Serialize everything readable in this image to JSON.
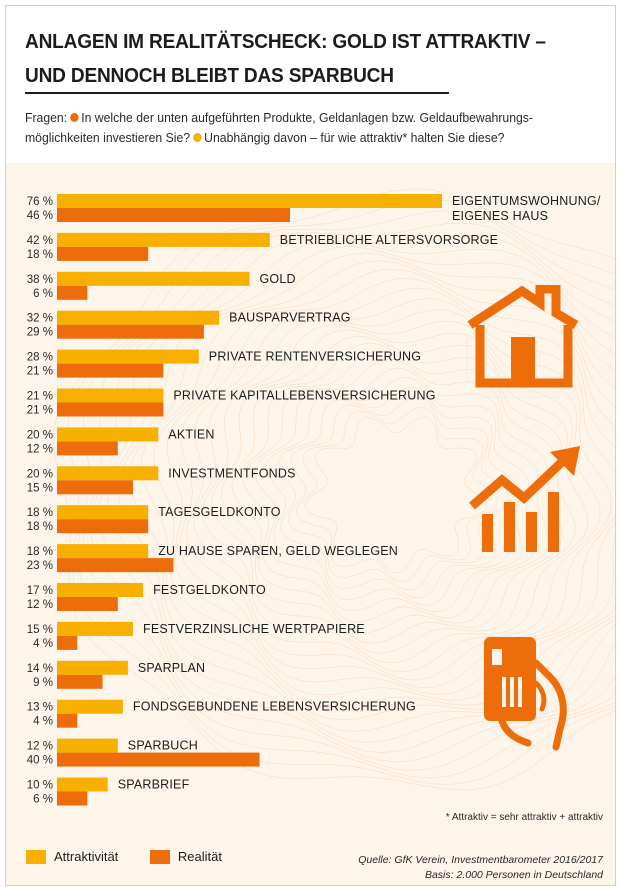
{
  "title": {
    "line1": "ANLAGEN IM REALITÄTSCHECK: GOLD IST ATTRAKTIV –",
    "line2": "UND DENNOCH BLEIBT DAS SPARBUCH"
  },
  "questions": {
    "prefix": "Fragen:",
    "q1_part1": "In welche der unten aufgeführten Produkte, Geldanlagen bzw. Geldaufbewahrungs-",
    "q1_part2": "möglichkeiten investieren Sie?",
    "q2": "Unabhängig davon – für wie attraktiv* halten Sie diese?"
  },
  "footnote": "* Attraktiv = sehr attraktiv + attraktiv",
  "legend": {
    "attraktivitaet": "Attraktivität",
    "realitaet": "Realität"
  },
  "source": {
    "line1": "Quelle: GfK Verein, Investmentbarometer 2016/2017",
    "line2": "Basis: 2.000 Personen in Deutschland"
  },
  "colors": {
    "attraktivitaet": "#f7b000",
    "realitaet": "#ee6d0b",
    "background": "#fdf4ea",
    "text": "#1c1c1c"
  },
  "icons": [
    "house-icon",
    "growth-chart-icon",
    "card-in-hand-icon"
  ],
  "chart_data": {
    "type": "bar",
    "orientation": "horizontal",
    "categories": [
      [
        "EIGENTUMSWOHNUNG/",
        "EIGENES HAUS"
      ],
      [
        "BETRIEBLICHE ALTERSVORSORGE"
      ],
      [
        "GOLD"
      ],
      [
        "BAUSPARVERTRAG"
      ],
      [
        "PRIVATE RENTENVERSICHERUNG"
      ],
      [
        "PRIVATE KAPITALLEBENSVERSICHERUNG"
      ],
      [
        "AKTIEN"
      ],
      [
        "INVESTMENTFONDS"
      ],
      [
        "TAGESGELDKONTO"
      ],
      [
        "ZU HAUSE SPAREN, GELD WEGLEGEN"
      ],
      [
        "FESTGELDKONTO"
      ],
      [
        "FESTVERZINSLICHE WERTPAPIERE"
      ],
      [
        "SPARPLAN"
      ],
      [
        "FONDSGEBUNDENE LEBENSVERSICHERUNG"
      ],
      [
        "SPARBUCH"
      ],
      [
        "SPARBRIEF"
      ]
    ],
    "series": [
      {
        "name": "Attraktivität",
        "values": [
          76,
          42,
          38,
          32,
          28,
          21,
          20,
          20,
          18,
          18,
          17,
          15,
          14,
          13,
          12,
          10
        ]
      },
      {
        "name": "Realität",
        "values": [
          46,
          18,
          6,
          29,
          21,
          21,
          12,
          15,
          18,
          23,
          12,
          4,
          9,
          4,
          40,
          6
        ]
      }
    ],
    "unit": "%",
    "xlim": [
      0,
      100
    ],
    "grid": false,
    "legend_position": "bottom-left"
  }
}
